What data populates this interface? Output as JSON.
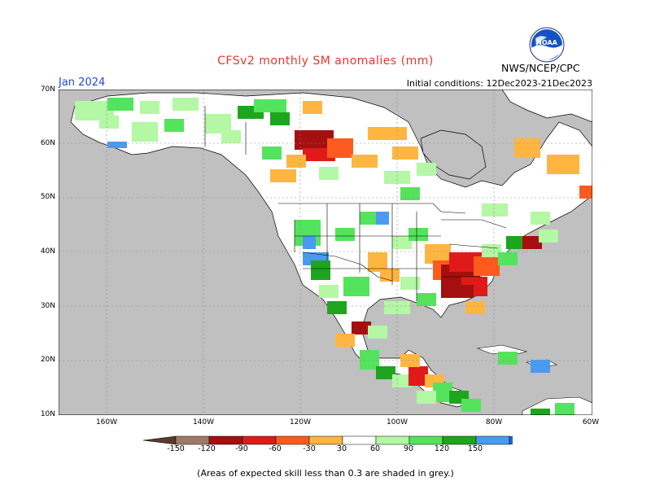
{
  "title": "CFSv2 monthly SM anomalies (mm)",
  "valid_month": "Jan 2024",
  "initial_conditions": "Initial conditions: 12Dec2023-21Dec2023",
  "agency": "NWS/NCEP/CPC",
  "logo_text": "NOAA",
  "footnote": "(Areas of expected skill less than 0.3 are shaded in grey.)",
  "lat_labels": [
    "70N",
    "60N",
    "50N",
    "40N",
    "30N",
    "20N",
    "10N"
  ],
  "lon_labels": [
    "160W",
    "140W",
    "120W",
    "100W",
    "80W",
    "60W"
  ],
  "colorbar": {
    "labels": [
      "-150",
      "-120",
      "-90",
      "-60",
      "-30",
      "30",
      "60",
      "90",
      "120",
      "150"
    ],
    "colors": [
      "#5a3a2a",
      "#a0786a",
      "#a50f0f",
      "#e01a1a",
      "#ff5a1e",
      "#ffb640",
      "#ffffff",
      "#b4f7a4",
      "#54e35c",
      "#1ea51e",
      "#4a9bf0",
      "#2a62d8"
    ]
  },
  "map_colors": {
    "ocean_land_low_skill": "#c0c0c0",
    "neutral": "#ffffff"
  }
}
